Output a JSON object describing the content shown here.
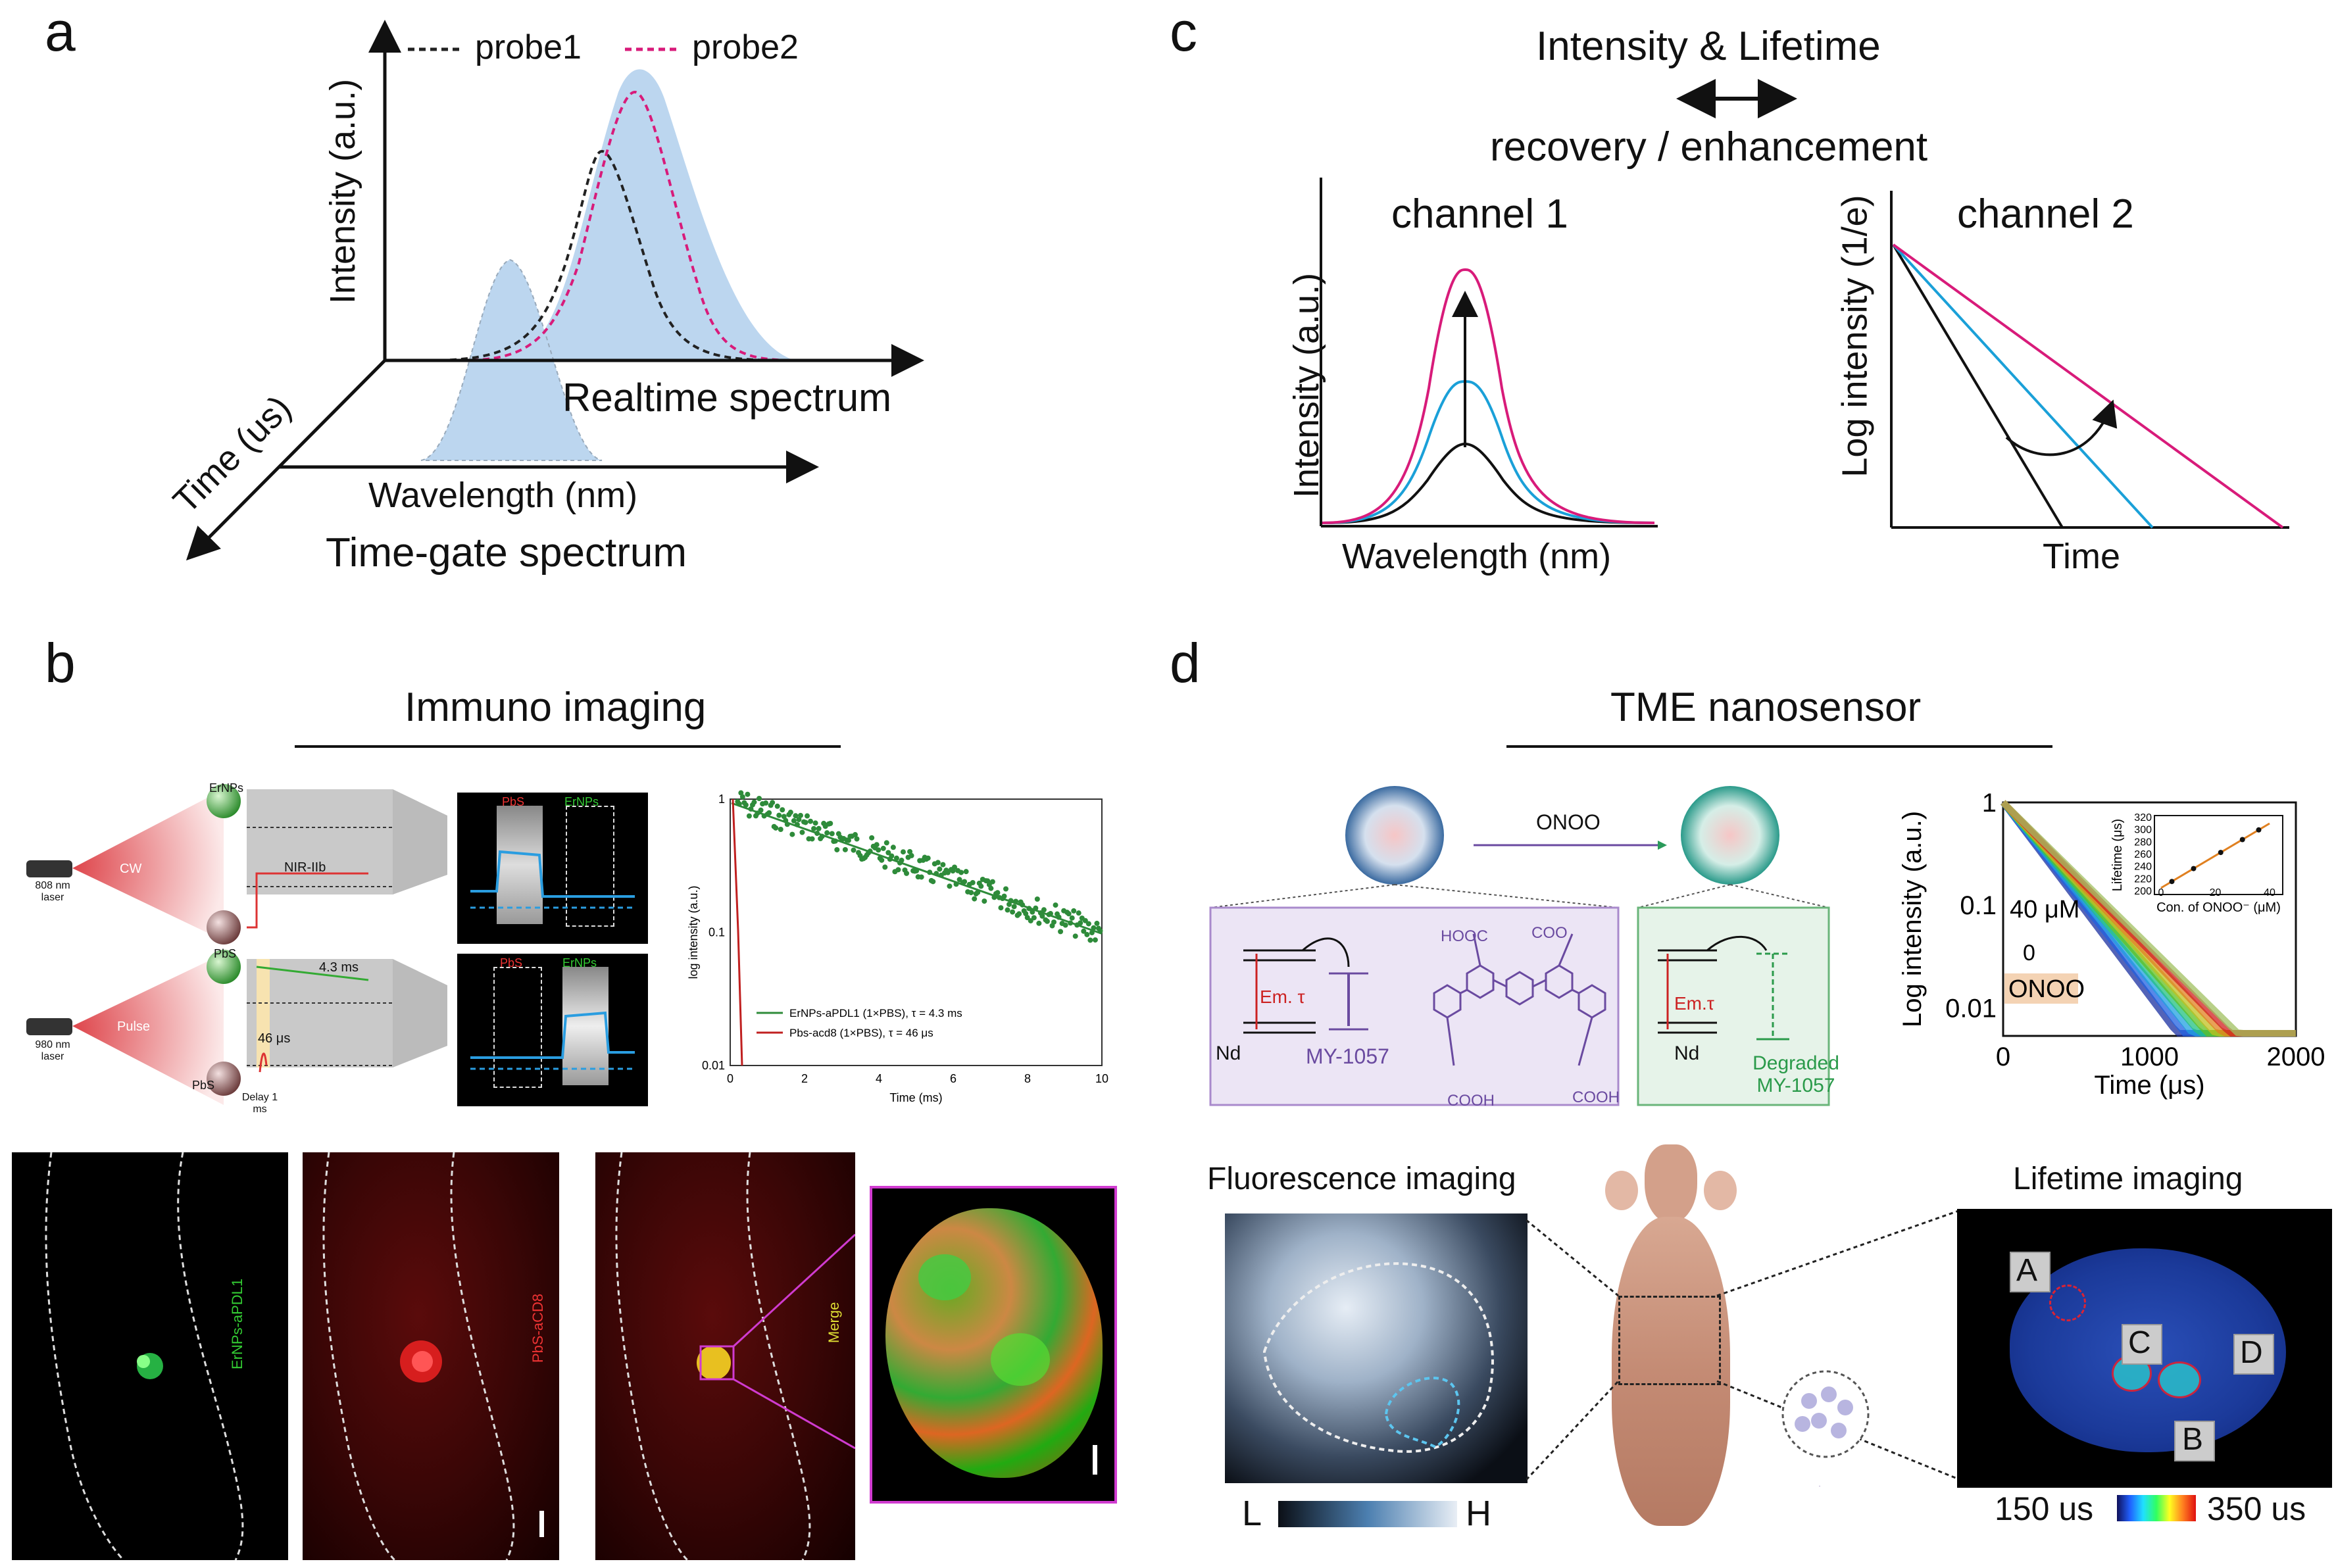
{
  "panels": {
    "a": {
      "letter": "a",
      "legend": [
        "probe1",
        "probe2"
      ],
      "y_axis": "Intensity (a.u.)",
      "time_axis": "Time (us)",
      "wavelength_axis": "Wavelength (nm)",
      "realtime_label": "Realtime spectrum",
      "timegate_label": "Time-gate spectrum",
      "colors": {
        "probe1": "#222222",
        "probe2": "#d81b7a",
        "fill": "#bcd6ef"
      }
    },
    "b": {
      "letter": "b",
      "title": "Immuno imaging",
      "cw_label": "CW",
      "pulse_label": "Pulse",
      "laser808": "808 nm laser",
      "laser980": "980 nm laser",
      "ernps": "ErNPs",
      "pbs": "PbS",
      "nir": "NIR-IIb",
      "t43": "4.3 ms",
      "t46": "46 μs",
      "delay": "Delay 1 ms",
      "img_labels": [
        "PbS",
        "ErNPs"
      ],
      "decay_chart": {
        "ylabel": "log intensity (a.u.)",
        "xlabel": "Time (ms)",
        "yticks": [
          "1",
          "0.1",
          "0.01"
        ],
        "xticks": [
          "0",
          "2",
          "4",
          "6",
          "8",
          "10"
        ],
        "legend": [
          "ErNPs-aPDL1 (1×PBS), τ = 4.3 ms",
          "Pbs-acd8 (1×PBS), τ = 46 μs"
        ]
      },
      "micro_labels": [
        "ErNPs-aPDL1",
        "PbS-aCD8",
        "Merge"
      ]
    },
    "c": {
      "letter": "c",
      "header1": "Intensity & Lifetime",
      "header2": "recovery / enhancement",
      "ch1": "channel 1",
      "ch2": "channel 2",
      "ch1_y": "Intensity (a.u.)",
      "ch1_x": "Wavelength (nm)",
      "ch2_y": "Log intensity (1/e)",
      "ch2_x": "Time"
    },
    "d": {
      "letter": "d",
      "title": "TME nanosensor",
      "onoo": "ONOO",
      "nd": "Nd",
      "em1": "Em. τ",
      "em2": "Em.τ",
      "my1057": "MY-1057",
      "degraded": "Degraded MY-1057",
      "hooc": "HOOC",
      "coo": "COO",
      "cooh": "COOH",
      "decay_chart": {
        "ylabel": "Log intensity (a.u.)",
        "xlabel": "Time (μs)",
        "yticks": [
          "1",
          "0.1",
          "0.01"
        ],
        "xticks": [
          "0",
          "1000",
          "2000"
        ],
        "c40": "40 μM",
        "c0": "0",
        "onoo_box": "ONOO",
        "inset": {
          "ylabel": "Lifetime (μs)",
          "xlabel": "Con. of ONOO⁻ (μM)",
          "yticks": [
            "320",
            "300",
            "280",
            "260",
            "240",
            "220",
            "200"
          ],
          "xticks": [
            "0",
            "20",
            "40"
          ]
        }
      },
      "fluor_title": "Fluorescence imaging",
      "life_title": "Lifetime imaging",
      "L": "L",
      "H": "H",
      "scale_lo": "150 us",
      "scale_hi": "350 us",
      "regions": [
        "A",
        "C",
        "D",
        "B"
      ]
    }
  }
}
